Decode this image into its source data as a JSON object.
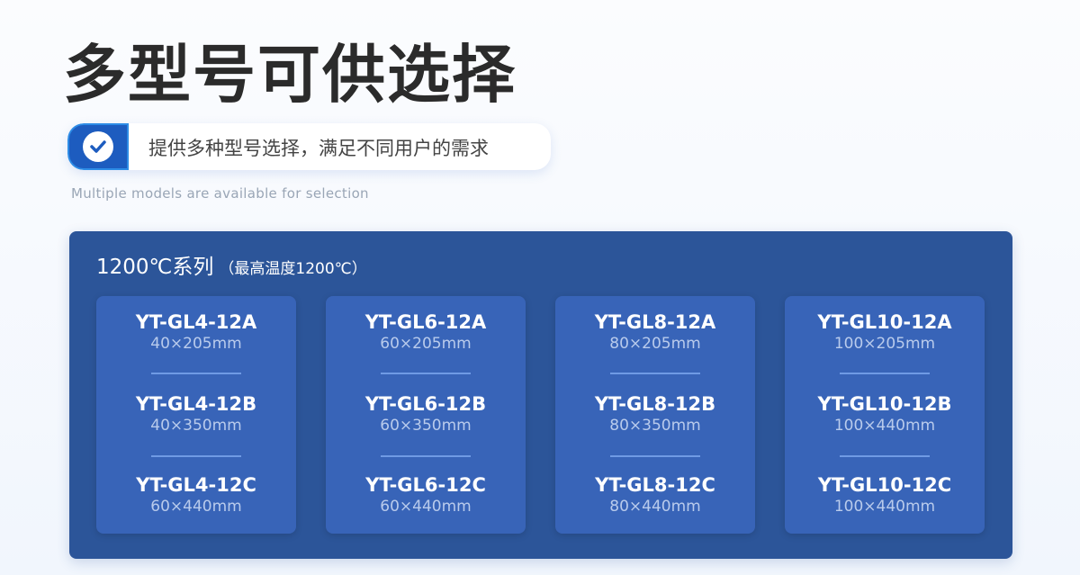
{
  "heading": "多型号可供选择",
  "tagline": {
    "icon": "check-circle-icon",
    "text": "提供多种型号选择，满足不同用户的需求"
  },
  "subtitle": "Multiple models are available for selection",
  "series": {
    "title": "1200℃系列",
    "note": "（最高温度1200℃）",
    "cards": [
      {
        "items": [
          {
            "model": "YT-GL4-12A",
            "size": "40×205mm"
          },
          {
            "model": "YT-GL4-12B",
            "size": "40×350mm"
          },
          {
            "model": "YT-GL4-12C",
            "size": "60×440mm"
          }
        ]
      },
      {
        "items": [
          {
            "model": "YT-GL6-12A",
            "size": "60×205mm"
          },
          {
            "model": "YT-GL6-12B",
            "size": "60×350mm"
          },
          {
            "model": "YT-GL6-12C",
            "size": "60×440mm"
          }
        ]
      },
      {
        "items": [
          {
            "model": "YT-GL8-12A",
            "size": "80×205mm"
          },
          {
            "model": "YT-GL8-12B",
            "size": "80×350mm"
          },
          {
            "model": "YT-GL8-12C",
            "size": "80×440mm"
          }
        ]
      },
      {
        "items": [
          {
            "model": "YT-GL10-12A",
            "size": "100×205mm"
          },
          {
            "model": "YT-GL10-12B",
            "size": "100×440mm"
          },
          {
            "model": "YT-GL10-12C",
            "size": "100×440mm"
          }
        ]
      }
    ]
  },
  "colors": {
    "panel": "#2c5599",
    "card": "#3864b8",
    "badge": "#1d5cbf"
  }
}
